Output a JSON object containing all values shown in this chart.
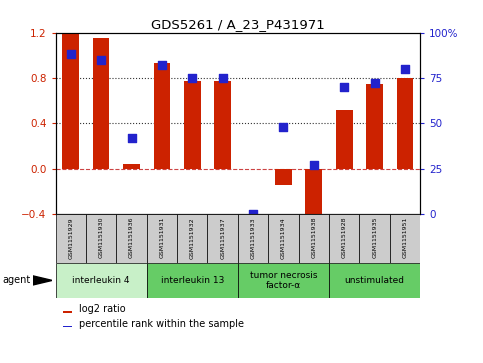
{
  "title": "GDS5261 / A_23_P431971",
  "samples": [
    "GSM1151929",
    "GSM1151930",
    "GSM1151936",
    "GSM1151931",
    "GSM1151932",
    "GSM1151937",
    "GSM1151933",
    "GSM1151934",
    "GSM1151938",
    "GSM1151928",
    "GSM1151935",
    "GSM1151951"
  ],
  "log2_ratio": [
    1.2,
    1.15,
    0.04,
    0.93,
    0.77,
    0.77,
    0.0,
    -0.14,
    -0.48,
    0.52,
    0.75,
    0.8
  ],
  "percentile_rank": [
    88,
    85,
    42,
    82,
    75,
    75,
    0,
    48,
    27,
    70,
    72,
    80
  ],
  "groups": [
    {
      "label": "interleukin 4",
      "start": 0,
      "end": 3
    },
    {
      "label": "interleukin 13",
      "start": 3,
      "end": 6
    },
    {
      "label": "tumor necrosis\nfactor-α",
      "start": 6,
      "end": 9
    },
    {
      "label": "unstimulated",
      "start": 9,
      "end": 12
    }
  ],
  "group_bg_colors": [
    "#c8f0c8",
    "#66cc66",
    "#66cc66",
    "#66cc66"
  ],
  "ylim_left": [
    -0.4,
    1.2
  ],
  "ylim_right": [
    0,
    100
  ],
  "bar_color": "#cc2200",
  "scatter_color": "#2222cc",
  "bar_width": 0.55,
  "dotted_line_color": "#333333",
  "zero_line_color": "#cc4444",
  "bg_color": "#ffffff",
  "plot_bg_color": "#ffffff",
  "sample_box_color": "#cccccc",
  "agent_label": "agent",
  "legend_log2": "log2 ratio",
  "legend_pct": "percentile rank within the sample",
  "left_yticks": [
    -0.4,
    0.0,
    0.4,
    0.8,
    1.2
  ],
  "right_yticks": [
    0,
    25,
    50,
    75,
    100
  ]
}
